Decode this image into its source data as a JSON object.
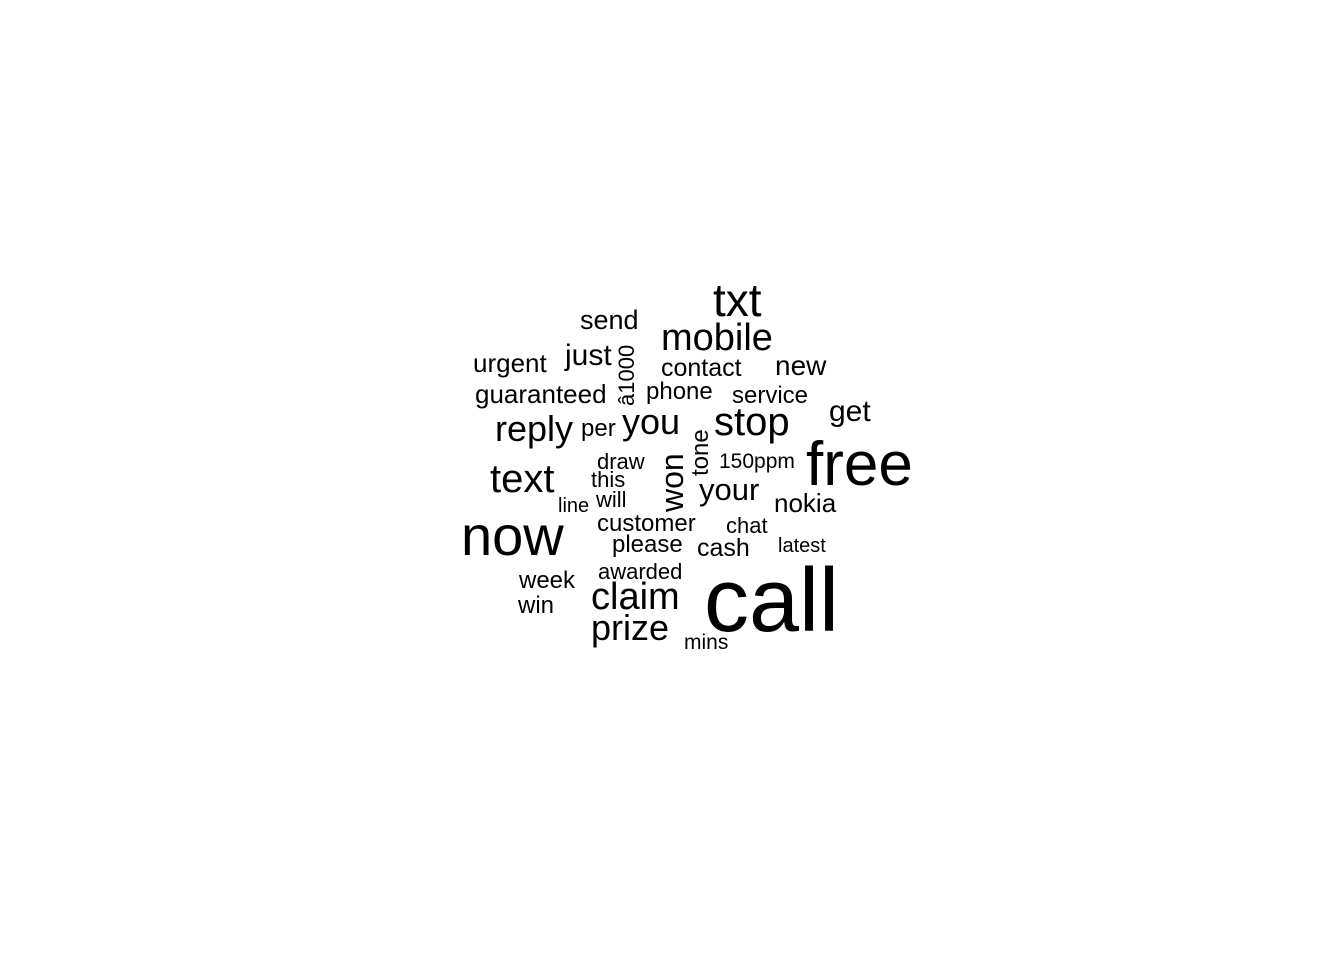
{
  "wordcloud": {
    "words": {
      "call": "call",
      "free": "free",
      "now": "now",
      "txt": "txt",
      "mobile": "mobile",
      "text": "text",
      "stop": "stop",
      "reply": "reply",
      "claim": "claim",
      "prize": "prize",
      "you": "you",
      "your": "your",
      "won": "won",
      "just": "just",
      "get": "get",
      "new": "new",
      "contact": "contact",
      "send": "send",
      "urgent": "urgent",
      "guaranteed": "guaranteed",
      "a1000": "â1000",
      "phone": "phone",
      "service": "service",
      "per": "per",
      "tone": "tone",
      "ppm150": "150ppm",
      "draw": "draw",
      "this": "this",
      "will": "will",
      "line": "line",
      "nokia": "nokia",
      "customer": "customer",
      "chat": "chat",
      "please": "please",
      "cash": "cash",
      "latest": "latest",
      "awarded": "awarded",
      "week": "week",
      "win": "win",
      "mins": "mins"
    }
  }
}
